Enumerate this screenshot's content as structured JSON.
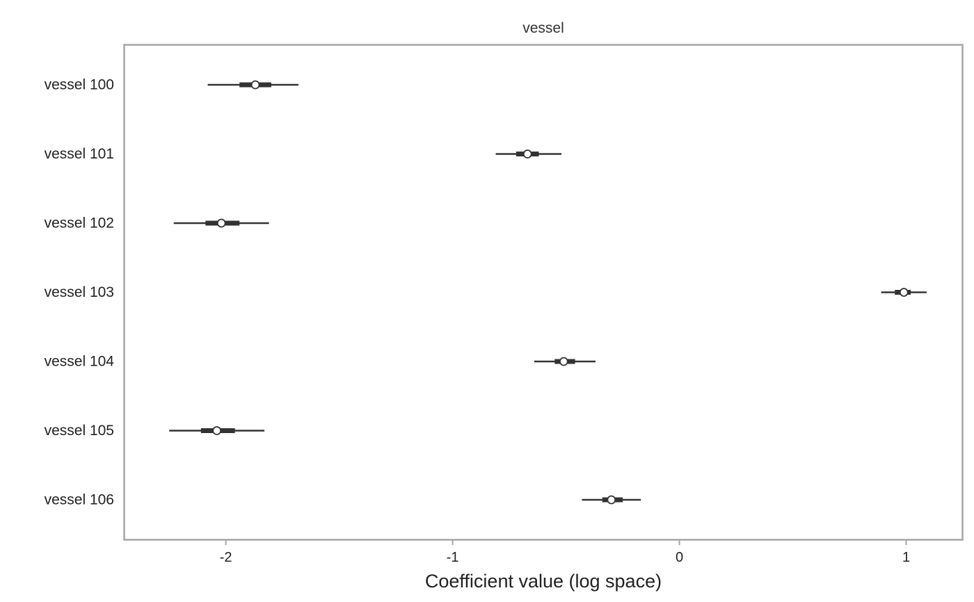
{
  "chart_data": {
    "type": "scatter",
    "subtype": "point-interval",
    "title": "vessel",
    "xlabel": "Coefficient value (log space)",
    "ylabel": "",
    "xlim": [
      -2.45,
      1.25
    ],
    "xticks": [
      -2,
      -1,
      0,
      1
    ],
    "xtick_labels": [
      "-2",
      "-1",
      "0",
      "1"
    ],
    "grid": false,
    "categories": [
      "vessel 100",
      "vessel 101",
      "vessel 102",
      "vessel 103",
      "vessel 104",
      "vessel 105",
      "vessel 106"
    ],
    "points": [
      {
        "label": "vessel 100",
        "median": -1.87,
        "inner": [
          -1.94,
          -1.8
        ],
        "outer": [
          -2.08,
          -1.68
        ]
      },
      {
        "label": "vessel 101",
        "median": -0.67,
        "inner": [
          -0.72,
          -0.62
        ],
        "outer": [
          -0.81,
          -0.52
        ]
      },
      {
        "label": "vessel 102",
        "median": -2.02,
        "inner": [
          -2.09,
          -1.94
        ],
        "outer": [
          -2.23,
          -1.81
        ]
      },
      {
        "label": "vessel 103",
        "median": 0.99,
        "inner": [
          0.95,
          1.02
        ],
        "outer": [
          0.89,
          1.09
        ]
      },
      {
        "label": "vessel 104",
        "median": -0.51,
        "inner": [
          -0.55,
          -0.46
        ],
        "outer": [
          -0.64,
          -0.37
        ]
      },
      {
        "label": "vessel 105",
        "median": -2.04,
        "inner": [
          -2.11,
          -1.96
        ],
        "outer": [
          -2.25,
          -1.83
        ]
      },
      {
        "label": "vessel 106",
        "median": -0.3,
        "inner": [
          -0.34,
          -0.25
        ],
        "outer": [
          -0.43,
          -0.17
        ]
      }
    ],
    "colors": {
      "frame": "#a6a6a6",
      "interval": "#333333",
      "marker_fill": "#ffffff",
      "marker_edge": "#333333"
    }
  }
}
